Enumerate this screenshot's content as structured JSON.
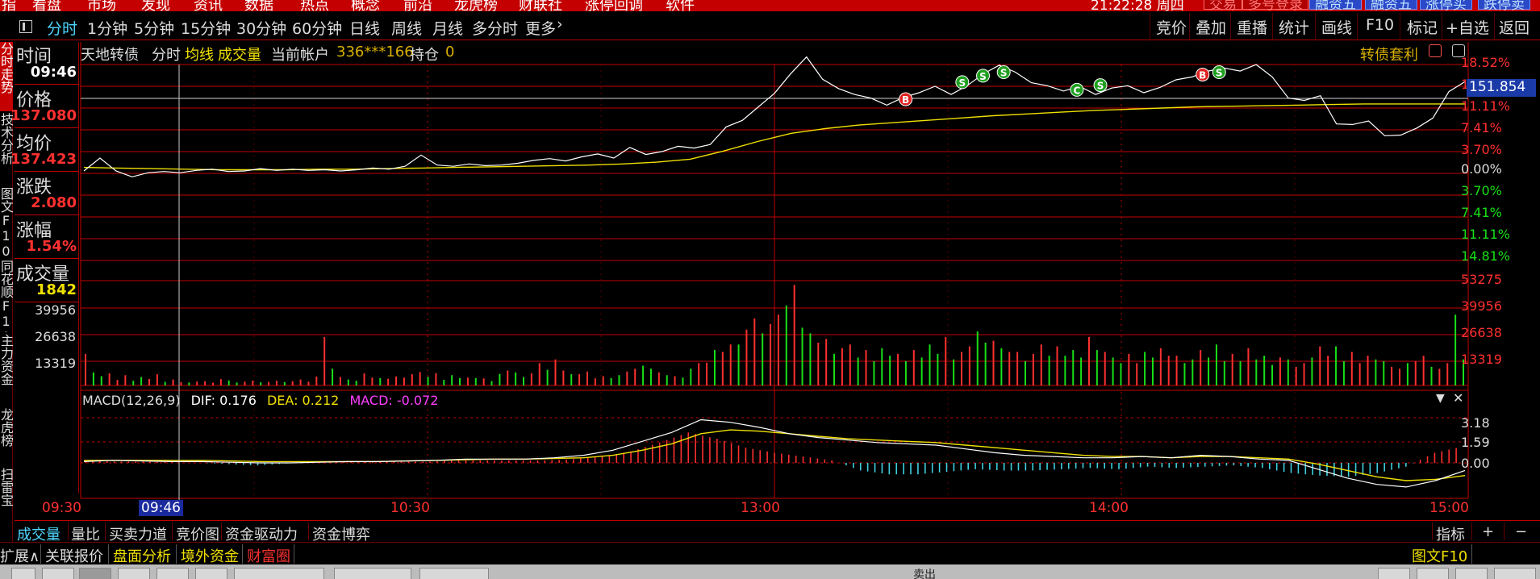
{
  "menubar": {
    "items": [
      "指",
      "看盘",
      "市场",
      "发现",
      "资讯",
      "数据",
      "热点",
      "概念",
      "前沿",
      "龙虎榜",
      "财联社",
      "涨停回调",
      "软件"
    ],
    "clock": "21:22:28 周四",
    "trade_buttons": [
      "交易",
      "多号登录",
      "融资五",
      "融资五",
      "涨停买",
      "跌停卖"
    ]
  },
  "tabs": [
    "分时",
    "1分钟",
    "5分钟",
    "15分钟",
    "30分钟",
    "60分钟",
    "日线",
    "周线",
    "月线",
    "多分时",
    "更多"
  ],
  "toolbar_right": [
    "竞价",
    "叠加",
    "重播",
    "统计",
    "画线",
    "F10",
    "标记",
    "+自选",
    "返回"
  ],
  "side_tabs": [
    "分时走势",
    "技术分析",
    "图文F10",
    "同花顺F10",
    "主力资金",
    "龙虎榜",
    "扫雷宝"
  ],
  "info_panel": {
    "time_label": "时间",
    "time_value": "09:46",
    "price_label": "价格",
    "price_value": "137.080",
    "avg_label": "均价",
    "avg_value": "137.423",
    "change_label": "涨跌",
    "change_value": "2.080",
    "pct_label": "涨幅",
    "pct_value": "1.54%",
    "vol_label": "成交量",
    "vol_value": "1842",
    "vol_ticks": [
      "39956",
      "26638",
      "13319"
    ]
  },
  "chart_header": {
    "name": "天地转债",
    "mode": "分时",
    "avg_line": "均线",
    "volume": "成交量",
    "account_label": "当前帐户",
    "account": "336***166",
    "position_label": "持仓",
    "position": "0",
    "arbitrage": "转债套利"
  },
  "macd_header": {
    "name": "MACD(12,26,9)",
    "dif": "DIF: 0.176",
    "dea": "DEA: 0.212",
    "macd": "MACD: -0.072"
  },
  "colors": {
    "up": "#ff3030",
    "down": "#18e018",
    "price_line": "#ffffff",
    "avg_line": "#f0e000",
    "macd_neg": "#3ed0e0",
    "grid": "#c40000"
  },
  "chart_data": {
    "type": "line",
    "title": "天地转债 分时",
    "x_ticks": [
      "09:30",
      "10:30",
      "13:00",
      "14:00",
      "15:00"
    ],
    "cursor_time": "09:46",
    "price_axis": {
      "up_pcts": [
        "18.52%",
        "14.81%",
        "11.11%",
        "7.41%",
        "3.70%"
      ],
      "zero": "0.00%",
      "down_pcts": [
        "3.70%",
        "7.41%",
        "11.11%",
        "14.81%"
      ],
      "current_price": "151.854"
    },
    "price_pct_series": [
      0.0,
      2.2,
      0.0,
      -1.0,
      -0.3,
      -0.1,
      -0.3,
      0.1,
      0.3,
      -0.1,
      0.0,
      0.4,
      0.1,
      0.3,
      0.1,
      0.2,
      0.0,
      0.2,
      0.5,
      0.3,
      0.8,
      2.7,
      1.0,
      0.8,
      1.2,
      0.9,
      1.0,
      1.3,
      1.8,
      2.1,
      1.7,
      2.4,
      2.9,
      2.2,
      4.0,
      2.8,
      3.3,
      4.2,
      3.9,
      4.5,
      7.5,
      8.6,
      10.9,
      13.2,
      16.5,
      19.4,
      15.6,
      14.0,
      13.0,
      12.4,
      11.2,
      12.5,
      13.3,
      14.4,
      13.0,
      14.5,
      16.5,
      18.0,
      16.8,
      15.0,
      14.5,
      13.6,
      14.4,
      13.0,
      14.1,
      14.5,
      13.3,
      14.2,
      15.5,
      16.0,
      17.0,
      17.5,
      17.0,
      18.1,
      16.0,
      12.4,
      12.0,
      12.8,
      8.0,
      7.9,
      8.5,
      6.0,
      6.1,
      7.3,
      9.0,
      13.5,
      15.2
    ],
    "avg_pct_series": [
      0.6,
      0.5,
      0.4,
      0.3,
      0.2,
      0.2,
      0.2,
      0.3,
      0.3,
      0.4,
      0.5,
      0.6,
      0.7,
      0.8,
      0.9,
      1.0,
      1.2,
      1.5,
      2.0,
      3.4,
      5.0,
      6.4,
      7.2,
      7.8,
      8.2,
      8.6,
      9.0,
      9.4,
      9.7,
      10.0,
      10.3,
      10.5,
      10.7,
      10.9,
      11.0,
      11.1,
      11.2,
      11.3,
      11.4,
      11.4,
      11.4,
      11.4
    ],
    "trade_markers": [
      {
        "label": "B",
        "time_frac": 0.595,
        "pct": 12.2,
        "color": "#e02020"
      },
      {
        "label": "S",
        "time_frac": 0.636,
        "pct": 15.1,
        "color": "#20a020"
      },
      {
        "label": "S",
        "time_frac": 0.651,
        "pct": 16.2,
        "color": "#20a020"
      },
      {
        "label": "S",
        "time_frac": 0.666,
        "pct": 16.8,
        "color": "#20a020"
      },
      {
        "label": "C",
        "time_frac": 0.719,
        "pct": 13.8,
        "color": "#20a020"
      },
      {
        "label": "S",
        "time_frac": 0.736,
        "pct": 14.6,
        "color": "#20a020"
      },
      {
        "label": "B",
        "time_frac": 0.81,
        "pct": 16.4,
        "color": "#e02020"
      },
      {
        "label": "S",
        "time_frac": 0.822,
        "pct": 16.8,
        "color": "#20a020"
      }
    ],
    "volume_ticks": [
      "53275",
      "39956",
      "26638",
      "13319"
    ],
    "volume_max": 53275,
    "volume_series": [
      17000,
      7000,
      5000,
      6500,
      3000,
      5500,
      2500,
      4500,
      3500,
      6000,
      2000,
      3200,
      1800,
      1600,
      2100,
      2300,
      1500,
      3400,
      2700,
      1600,
      2100,
      2600,
      1700,
      1900,
      2600,
      1800,
      2300,
      3200,
      2000,
      4800,
      26000,
      9000,
      4500,
      3200,
      2500,
      6500,
      4200,
      4000,
      3600,
      4800,
      4200,
      6000,
      7200,
      4600,
      6600,
      3000,
      5500,
      4000,
      4200,
      4000,
      3800,
      2400,
      6200,
      8000,
      7000,
      4500,
      6500,
      12000,
      8400,
      14000,
      8000,
      6000,
      6000,
      7500,
      3800,
      5000,
      4000,
      5500,
      7500,
      9000,
      10600,
      9000,
      7000,
      5500,
      5000,
      4200,
      9000,
      12000,
      12200,
      19000,
      18000,
      22000,
      22000,
      30000,
      36000,
      28000,
      33000,
      38000,
      43000,
      54000,
      31000,
      28000,
      23000,
      25000,
      17000,
      20000,
      22000,
      15000,
      19000,
      13000,
      20000,
      16000,
      17000,
      13000,
      19000,
      15000,
      22000,
      17000,
      26000,
      14000,
      18000,
      21000,
      29000,
      23000,
      24000,
      20000,
      18000,
      18000,
      13000,
      17000,
      22000,
      16000,
      21000,
      16000,
      19000,
      15000,
      26000,
      19000,
      18000,
      15000,
      12000,
      17000,
      12000,
      18000,
      15000,
      20000,
      16000,
      16000,
      12000,
      14000,
      19000,
      15000,
      22000,
      13000,
      17000,
      13000,
      20000,
      14000,
      16000,
      11000,
      15000,
      14000,
      10000,
      12000,
      15000,
      21000,
      16000,
      21000,
      13000,
      18000,
      12000,
      16000,
      14000,
      13000,
      10000,
      9000,
      12000,
      13000,
      16000,
      10000,
      9000,
      12000,
      38000,
      14000
    ],
    "macd_ticks": [
      "3.18",
      "1.59",
      "0.00"
    ],
    "macd_max": 3.4,
    "macd_dif_series": [
      0.1,
      0.2,
      0.15,
      0.1,
      0.1,
      0.05,
      0.0,
      0.0,
      0.05,
      0.1,
      0.1,
      0.15,
      0.2,
      0.3,
      0.3,
      0.3,
      0.4,
      0.6,
      1.0,
      1.7,
      2.4,
      3.4,
      3.2,
      2.8,
      2.3,
      2.0,
      1.8,
      1.6,
      1.5,
      1.4,
      1.1,
      0.8,
      0.6,
      0.5,
      0.4,
      0.4,
      0.5,
      0.4,
      0.6,
      0.5,
      0.3,
      0.2,
      -0.5,
      -1.2,
      -1.7,
      -1.9,
      -1.4,
      -0.6
    ],
    "macd_dea_series": [
      0.2,
      0.2,
      0.2,
      0.2,
      0.2,
      0.15,
      0.1,
      0.1,
      0.1,
      0.1,
      0.1,
      0.15,
      0.2,
      0.25,
      0.3,
      0.3,
      0.35,
      0.4,
      0.6,
      1.0,
      1.5,
      2.3,
      2.6,
      2.5,
      2.3,
      2.1,
      1.9,
      1.8,
      1.7,
      1.6,
      1.4,
      1.2,
      1.0,
      0.8,
      0.6,
      0.5,
      0.5,
      0.4,
      0.5,
      0.5,
      0.4,
      0.3,
      -0.1,
      -0.6,
      -1.1,
      -1.4,
      -1.3,
      -1.0
    ],
    "macd_hist_series": [
      0.2,
      0.1,
      0.1,
      0.05,
      0.0,
      -0.1,
      -0.2,
      -0.05,
      0.0,
      0.1,
      0.1,
      0.1,
      0.1,
      0.2,
      0.2,
      0.2,
      0.2,
      0.3,
      0.5,
      0.9,
      1.6,
      2.4,
      1.9,
      1.2,
      0.8,
      0.5,
      0.2,
      -0.6,
      -0.9,
      -0.9,
      -0.7,
      -0.5,
      -0.6,
      -0.6,
      -0.5,
      -0.4,
      -0.5,
      -0.3,
      -0.4,
      -0.3,
      -0.2,
      -0.4,
      -0.8,
      -1.0,
      -1.1,
      -0.8,
      -0.3,
      0.8,
      1.3
    ]
  },
  "bottom_tabs": [
    "成交量",
    "量比",
    "买卖力道",
    "竞价图",
    "资金驱动力",
    "资金博弈"
  ],
  "bottom_right": {
    "indicator": "指标",
    "plus": "+",
    "minus": "−"
  },
  "bottom_row2": {
    "expand": "扩展∧",
    "items": [
      "关联报价",
      "盘面分析",
      "境外资金",
      "财富圈"
    ],
    "graphic_f10": "图文F10"
  },
  "taskbar": {
    "center": "卖出"
  }
}
